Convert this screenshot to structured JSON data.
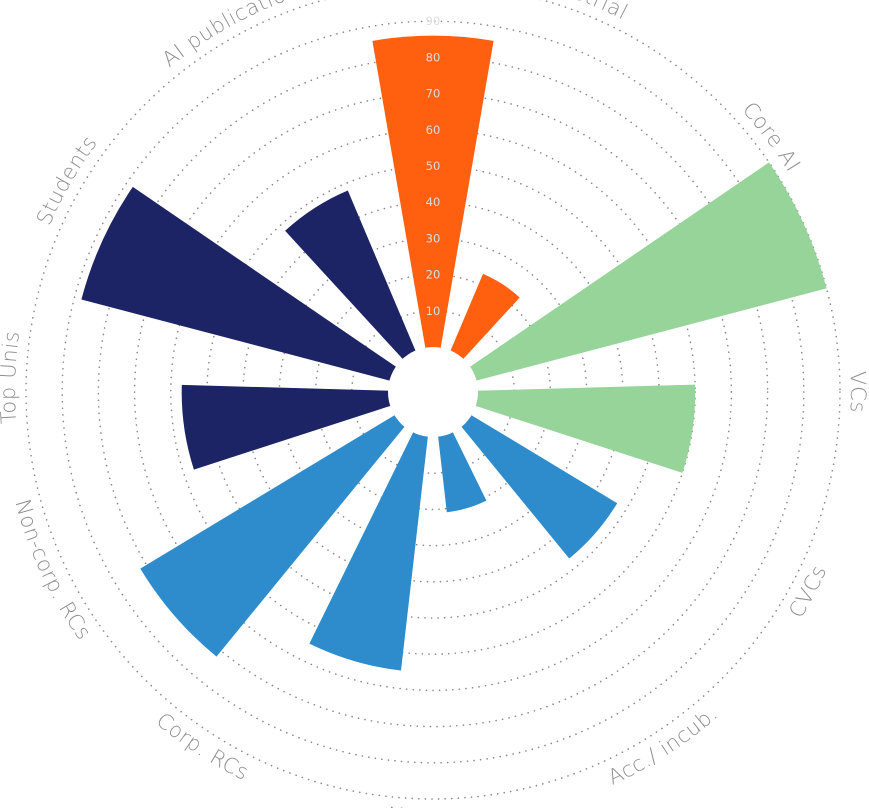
{
  "chart_data": {
    "type": "polar-bar",
    "title": "",
    "rlim": [
      0,
      100
    ],
    "r_ticks": [
      10,
      20,
      30,
      40,
      50,
      60,
      70,
      80,
      90,
      100
    ],
    "grid": true,
    "series": [
      {
        "name": "Industrial",
        "value": 86,
        "color": "#FF6010",
        "label_angle": 20
      },
      {
        "name": "Core AI",
        "value": 23,
        "color": "#FF6010",
        "label_angle": 53
      },
      {
        "name": "VCs",
        "value": 100,
        "color": "#96D49A",
        "label_angle": 90
      },
      {
        "name": "CVCs",
        "value": 60,
        "color": "#96D49A",
        "label_angle": 118
      },
      {
        "name": "Acc./ incub.",
        "value": 47,
        "color": "#2E8BCC",
        "label_angle": 147
      },
      {
        "name": "Meetups",
        "value": 21,
        "color": "#2E8BCC",
        "label_angle": 180
      },
      {
        "name": "Corp. RCs",
        "value": 65,
        "color": "#2E8BCC",
        "label_angle": 213
      },
      {
        "name": "Non-corp. RCs",
        "value": 82,
        "color": "#2E8BCC",
        "label_angle": 245
      },
      {
        "name": "Top Unis",
        "value": 57,
        "color": "#1C2466",
        "label_angle": 272
      },
      {
        "name": "Students",
        "value": 88,
        "color": "#1C2466",
        "label_angle": 300
      },
      {
        "name": "AI publications",
        "value": 48,
        "color": "#1C2466",
        "label_angle": 332
      }
    ]
  }
}
